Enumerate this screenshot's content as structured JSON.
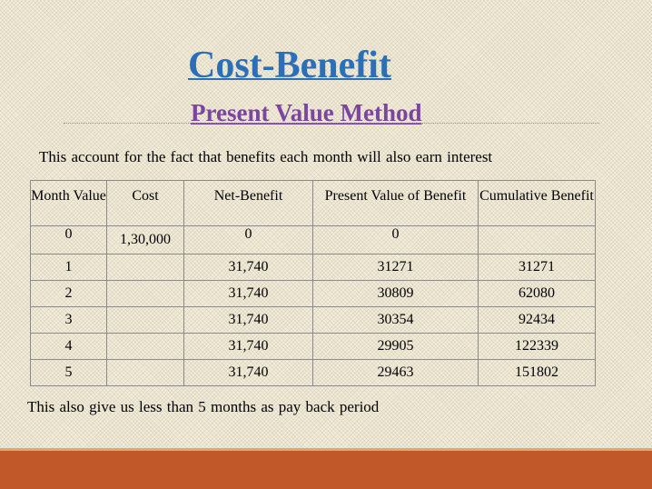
{
  "slide": {
    "title": "Cost-Benefit",
    "subtitle": "Present Value Method",
    "intro": "This account for the fact that benefits each month will also earn interest",
    "closing": "This also give us less than 5 months as pay back period"
  },
  "table": {
    "headers": [
      "Month Value",
      "Cost",
      "Net-Benefit",
      "Present Value of Benefit",
      "Cumulative Benefit"
    ],
    "rows": [
      {
        "month": "0",
        "cost": "1,30,000",
        "net": "0",
        "pv": "0",
        "cum": ""
      },
      {
        "month": "1",
        "cost": "",
        "net": "31,740",
        "pv": "31271",
        "cum": "31271"
      },
      {
        "month": "2",
        "cost": "",
        "net": "31,740",
        "pv": "30809",
        "cum": "62080"
      },
      {
        "month": "3",
        "cost": "",
        "net": "31,740",
        "pv": "30354",
        "cum": "92434"
      },
      {
        "month": "4",
        "cost": "",
        "net": "31,740",
        "pv": "29905",
        "cum": "122339"
      },
      {
        "month": "5",
        "cost": "",
        "net": "31,740",
        "pv": "29463",
        "cum": "151802"
      }
    ]
  },
  "colors": {
    "title": "#2c6fb8",
    "subtitle": "#7b45a0",
    "footer_band": "#c0582a"
  }
}
